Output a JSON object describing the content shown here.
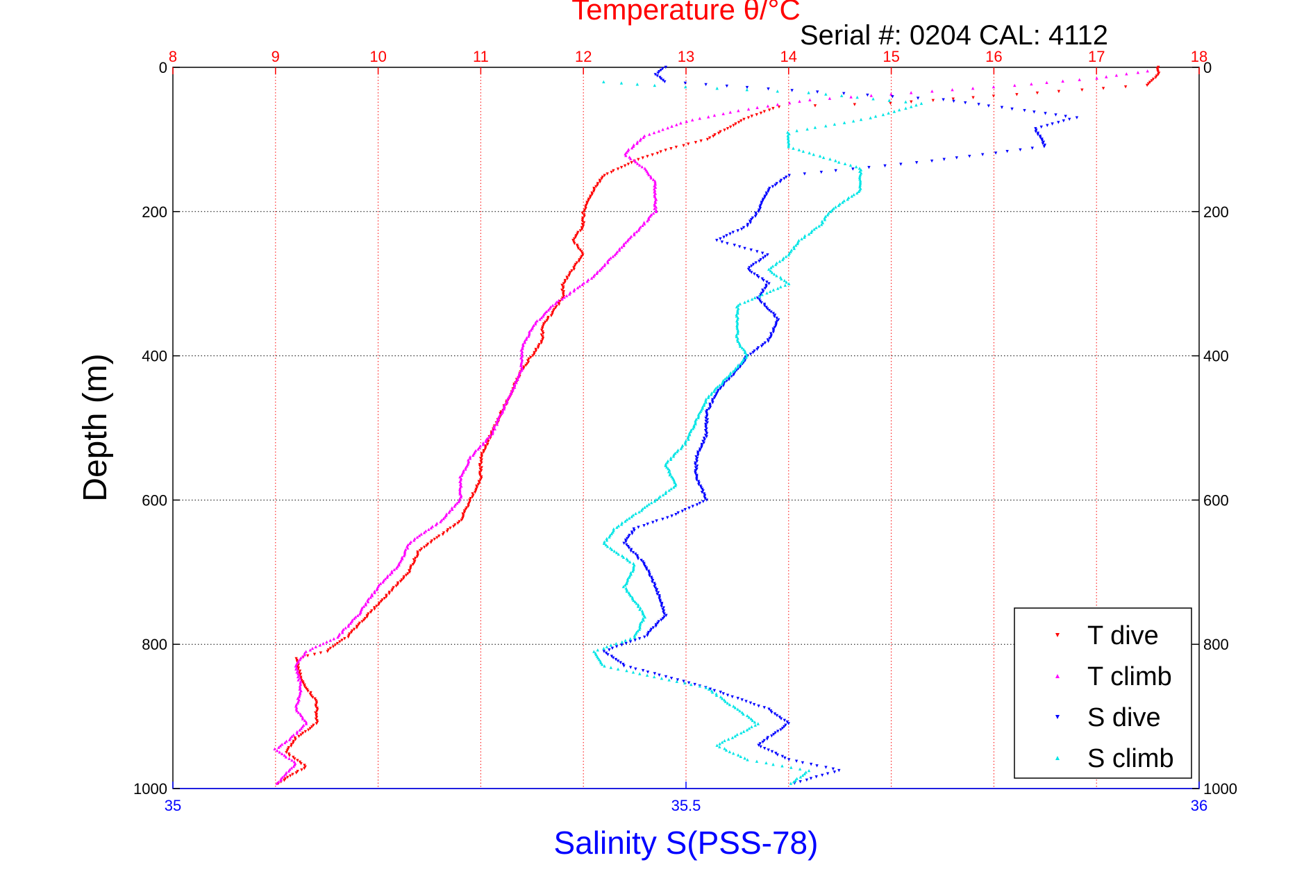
{
  "chart_data": {
    "type": "scatter",
    "title": "Temperature θ/°C",
    "subtitle": "Serial #: 0204  CAL: 4112",
    "ylabel": "Depth (m)",
    "xlabel_bottom": "Salinity S(PSS-78)",
    "y_axis": {
      "range": [
        0,
        1000
      ],
      "reversed": true,
      "ticks": [
        0,
        200,
        400,
        600,
        800,
        1000
      ],
      "grid": true
    },
    "x_top": {
      "range": [
        8,
        18
      ],
      "ticks": [
        8,
        9,
        10,
        11,
        12,
        13,
        14,
        15,
        16,
        17,
        18
      ],
      "color": "#ff0000",
      "grid": true
    },
    "x_bottom": {
      "range": [
        35,
        36
      ],
      "ticks": [
        35,
        35.5,
        36
      ],
      "tick_labels": [
        "35",
        "35.5",
        "36"
      ],
      "color": "#0000ff"
    },
    "legend": {
      "placement": "bottom-right",
      "entries": [
        "T dive",
        "T climb",
        "S dive",
        "S climb"
      ]
    },
    "series": [
      {
        "name": "T dive",
        "axis": "top",
        "color": "#ff0000",
        "marker": "triangle-down",
        "points": [
          [
            17.6,
            0
          ],
          [
            17.6,
            10
          ],
          [
            17.5,
            25
          ],
          [
            16,
            40
          ],
          [
            15,
            50
          ],
          [
            13.9,
            55
          ],
          [
            13.6,
            70
          ],
          [
            13.4,
            85
          ],
          [
            13.2,
            100
          ],
          [
            12.8,
            115
          ],
          [
            12.5,
            130
          ],
          [
            12.2,
            150
          ],
          [
            12.1,
            170
          ],
          [
            12.0,
            200
          ],
          [
            12.0,
            220
          ],
          [
            11.9,
            240
          ],
          [
            12.0,
            260
          ],
          [
            11.9,
            280
          ],
          [
            11.8,
            300
          ],
          [
            11.8,
            320
          ],
          [
            11.7,
            340
          ],
          [
            11.6,
            360
          ],
          [
            11.6,
            380
          ],
          [
            11.5,
            400
          ],
          [
            11.4,
            420
          ],
          [
            11.3,
            450
          ],
          [
            11.2,
            480
          ],
          [
            11.1,
            510
          ],
          [
            11.0,
            540
          ],
          [
            11.0,
            570
          ],
          [
            10.9,
            600
          ],
          [
            10.8,
            630
          ],
          [
            10.6,
            650
          ],
          [
            10.4,
            670
          ],
          [
            10.3,
            700
          ],
          [
            10.1,
            730
          ],
          [
            9.9,
            760
          ],
          [
            9.7,
            790
          ],
          [
            9.5,
            810
          ],
          [
            9.2,
            820
          ],
          [
            9.25,
            850
          ],
          [
            9.4,
            880
          ],
          [
            9.4,
            910
          ],
          [
            9.2,
            930
          ],
          [
            9.1,
            950
          ],
          [
            9.3,
            970
          ],
          [
            9.0,
            995
          ]
        ]
      },
      {
        "name": "T climb",
        "axis": "top",
        "color": "#ff00ff",
        "marker": "triangle-up",
        "points": [
          [
            17.5,
            5
          ],
          [
            17.0,
            15
          ],
          [
            16.2,
            25
          ],
          [
            15.2,
            35
          ],
          [
            14.2,
            45
          ],
          [
            13.5,
            60
          ],
          [
            13.0,
            75
          ],
          [
            12.6,
            95
          ],
          [
            12.4,
            120
          ],
          [
            12.6,
            140
          ],
          [
            12.7,
            160
          ],
          [
            12.7,
            200
          ],
          [
            12.5,
            230
          ],
          [
            12.3,
            260
          ],
          [
            12.1,
            290
          ],
          [
            11.9,
            310
          ],
          [
            11.7,
            330
          ],
          [
            11.5,
            360
          ],
          [
            11.4,
            390
          ],
          [
            11.4,
            420
          ],
          [
            11.3,
            450
          ],
          [
            11.2,
            480
          ],
          [
            11.1,
            510
          ],
          [
            10.9,
            540
          ],
          [
            10.8,
            570
          ],
          [
            10.8,
            600
          ],
          [
            10.6,
            630
          ],
          [
            10.3,
            660
          ],
          [
            10.2,
            690
          ],
          [
            10.0,
            720
          ],
          [
            9.8,
            760
          ],
          [
            9.6,
            790
          ],
          [
            9.3,
            810
          ],
          [
            9.2,
            830
          ],
          [
            9.25,
            860
          ],
          [
            9.2,
            890
          ],
          [
            9.3,
            910
          ],
          [
            9.15,
            930
          ],
          [
            9.0,
            945
          ],
          [
            9.2,
            965
          ],
          [
            9.0,
            995
          ]
        ]
      },
      {
        "name": "S dive",
        "axis": "bottom",
        "color": "#0000ff",
        "marker": "triangle-down",
        "points": [
          [
            35.48,
            0
          ],
          [
            35.47,
            10
          ],
          [
            35.48,
            20
          ],
          [
            35.58,
            30
          ],
          [
            35.75,
            45
          ],
          [
            35.83,
            60
          ],
          [
            35.88,
            70
          ],
          [
            35.84,
            85
          ],
          [
            35.85,
            110
          ],
          [
            35.74,
            130
          ],
          [
            35.6,
            150
          ],
          [
            35.58,
            170
          ],
          [
            35.57,
            200
          ],
          [
            35.56,
            220
          ],
          [
            35.53,
            240
          ],
          [
            35.58,
            260
          ],
          [
            35.56,
            280
          ],
          [
            35.58,
            300
          ],
          [
            35.57,
            320
          ],
          [
            35.59,
            350
          ],
          [
            35.58,
            380
          ],
          [
            35.56,
            400
          ],
          [
            35.55,
            420
          ],
          [
            35.53,
            450
          ],
          [
            35.52,
            480
          ],
          [
            35.52,
            510
          ],
          [
            35.51,
            540
          ],
          [
            35.51,
            570
          ],
          [
            35.52,
            600
          ],
          [
            35.49,
            620
          ],
          [
            35.45,
            640
          ],
          [
            35.44,
            660
          ],
          [
            35.46,
            690
          ],
          [
            35.47,
            720
          ],
          [
            35.48,
            760
          ],
          [
            35.46,
            790
          ],
          [
            35.42,
            810
          ],
          [
            35.44,
            830
          ],
          [
            35.52,
            860
          ],
          [
            35.58,
            890
          ],
          [
            35.6,
            910
          ],
          [
            35.57,
            940
          ],
          [
            35.6,
            960
          ],
          [
            35.65,
            975
          ],
          [
            35.6,
            995
          ]
        ]
      },
      {
        "name": "S climb",
        "axis": "bottom",
        "color": "#00e5e5",
        "marker": "triangle-up",
        "points": [
          [
            35.42,
            20
          ],
          [
            35.47,
            25
          ],
          [
            35.62,
            35
          ],
          [
            35.73,
            50
          ],
          [
            35.68,
            70
          ],
          [
            35.6,
            90
          ],
          [
            35.6,
            110
          ],
          [
            35.67,
            140
          ],
          [
            35.67,
            170
          ],
          [
            35.64,
            200
          ],
          [
            35.63,
            220
          ],
          [
            35.61,
            240
          ],
          [
            35.6,
            260
          ],
          [
            35.58,
            280
          ],
          [
            35.6,
            300
          ],
          [
            35.55,
            330
          ],
          [
            35.55,
            360
          ],
          [
            35.55,
            380
          ],
          [
            35.56,
            400
          ],
          [
            35.54,
            430
          ],
          [
            35.52,
            460
          ],
          [
            35.51,
            490
          ],
          [
            35.5,
            520
          ],
          [
            35.48,
            550
          ],
          [
            35.49,
            580
          ],
          [
            35.46,
            610
          ],
          [
            35.43,
            640
          ],
          [
            35.42,
            660
          ],
          [
            35.45,
            690
          ],
          [
            35.44,
            720
          ],
          [
            35.46,
            760
          ],
          [
            35.45,
            790
          ],
          [
            35.41,
            810
          ],
          [
            35.42,
            830
          ],
          [
            35.52,
            860
          ],
          [
            35.55,
            890
          ],
          [
            35.57,
            910
          ],
          [
            35.53,
            940
          ],
          [
            35.56,
            960
          ],
          [
            35.62,
            975
          ],
          [
            35.6,
            995
          ]
        ]
      }
    ]
  }
}
